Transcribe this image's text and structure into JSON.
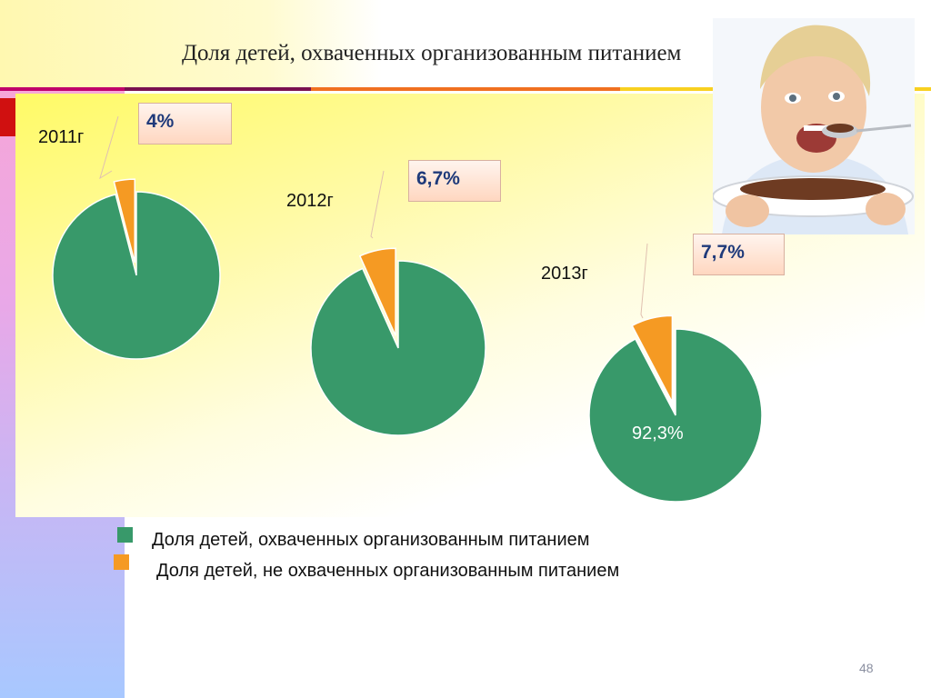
{
  "slide": {
    "title": "Доля детей, охваченных организованным питанием",
    "page_number": "48"
  },
  "colors": {
    "covered": "#38996a",
    "not_covered": "#f59a23",
    "callout_text": "#1f3a7a"
  },
  "chart_data": [
    {
      "type": "pie",
      "title": "2011г",
      "series": [
        {
          "name": "Доля детей, охваченных организованным питанием",
          "values": [
            96
          ]
        },
        {
          "name": "Доля детей, не охваченных организованным питанием",
          "values": [
            4
          ]
        }
      ],
      "labels": {
        "not_covered": "4%"
      }
    },
    {
      "type": "pie",
      "title": "2012г",
      "series": [
        {
          "name": "Доля детей, охваченных организованным питанием",
          "values": [
            93.3
          ]
        },
        {
          "name": "Доля детей, не охваченных организованным питанием",
          "values": [
            6.7
          ]
        }
      ],
      "labels": {
        "not_covered": "6,7%"
      }
    },
    {
      "type": "pie",
      "title": "2013г",
      "series": [
        {
          "name": "Доля детей, охваченных организованным питанием",
          "values": [
            92.3
          ]
        },
        {
          "name": "Доля детей, не охваченных организованным питанием",
          "values": [
            7.7
          ]
        }
      ],
      "labels": {
        "covered": "92,3%",
        "not_covered": "7,7%"
      }
    }
  ],
  "legend": [
    {
      "label": "Доля детей, охваченных организованным питанием",
      "color": "#38996a"
    },
    {
      "label": "Доля детей, не охваченных организованным питанием",
      "color": "#f59a23"
    }
  ]
}
